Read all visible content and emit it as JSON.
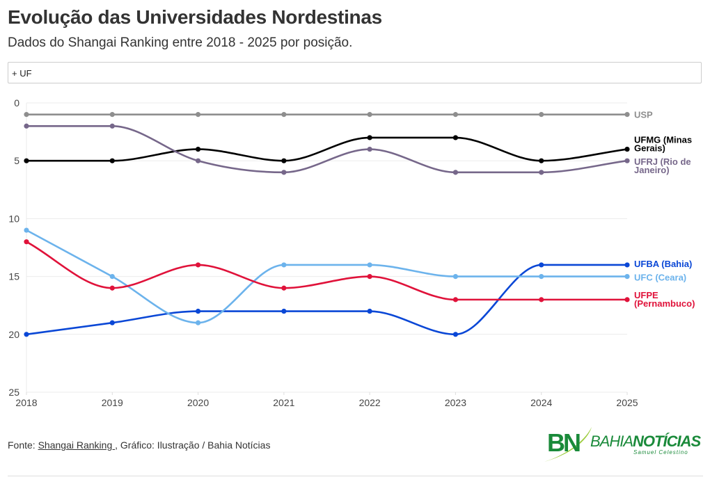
{
  "header": {
    "title": "Evolução das Universidades Nordestinas",
    "subtitle": "Dados do Shangai Ranking entre 2018 - 2025 por posição."
  },
  "filter": {
    "label": "+ UF"
  },
  "footer": {
    "prefix": "Fonte: ",
    "link": "Shangai Ranking ",
    "suffix": ", Gráfico: Ilustração / Bahia Notícias"
  },
  "logo": {
    "mark": "BN",
    "name_light": "BAHIA",
    "name_bold": "NOTÍCIAS",
    "tagline": "Samuel Celestino"
  },
  "chart_data": {
    "type": "line",
    "title": "Evolução das Universidades Nordestinas",
    "subtitle": "Dados do Shangai Ranking entre 2018 - 2025 por posição.",
    "xlabel": "",
    "ylabel": "",
    "x": [
      "2018",
      "2019",
      "2020",
      "2021",
      "2022",
      "2023",
      "2024",
      "2025"
    ],
    "ylim": [
      0,
      25
    ],
    "y_inverted": true,
    "yticks": [
      "0",
      "5",
      "10",
      "15",
      "20",
      "25"
    ],
    "grid": true,
    "legend": "right-end labels",
    "series": [
      {
        "name": "USP",
        "label_lines": [
          "USP"
        ],
        "color": "#8e8e8e",
        "values": [
          1,
          1,
          1,
          1,
          1,
          1,
          1,
          1
        ]
      },
      {
        "name": "UFMG (Minas Gerais)",
        "label_lines": [
          "UFMG (Minas",
          "Gerais)"
        ],
        "color": "#000000",
        "values": [
          5,
          5,
          4,
          5,
          3,
          3,
          5,
          4
        ]
      },
      {
        "name": "UFRJ (Rio de Janeiro)",
        "label_lines": [
          "UFRJ (Rio de",
          "Janeiro)"
        ],
        "color": "#76678a",
        "values": [
          2,
          2,
          5,
          6,
          4,
          6,
          6,
          5
        ]
      },
      {
        "name": "UFBA (Bahia)",
        "label_lines": [
          "UFBA (Bahia)"
        ],
        "color": "#0a47d6",
        "values": [
          20,
          19,
          18,
          18,
          18,
          20,
          14,
          14
        ]
      },
      {
        "name": "UFC (Ceara)",
        "label_lines": [
          "UFC (Ceara)"
        ],
        "color": "#6cb3ec",
        "values": [
          11,
          15,
          19,
          14,
          14,
          15,
          15,
          15
        ]
      },
      {
        "name": "UFPE (Pernambuco)",
        "label_lines": [
          "UFPE",
          "(Pernambuco)"
        ],
        "color": "#e0123a",
        "values": [
          12,
          16,
          14,
          16,
          15,
          17,
          17,
          17
        ]
      }
    ]
  }
}
